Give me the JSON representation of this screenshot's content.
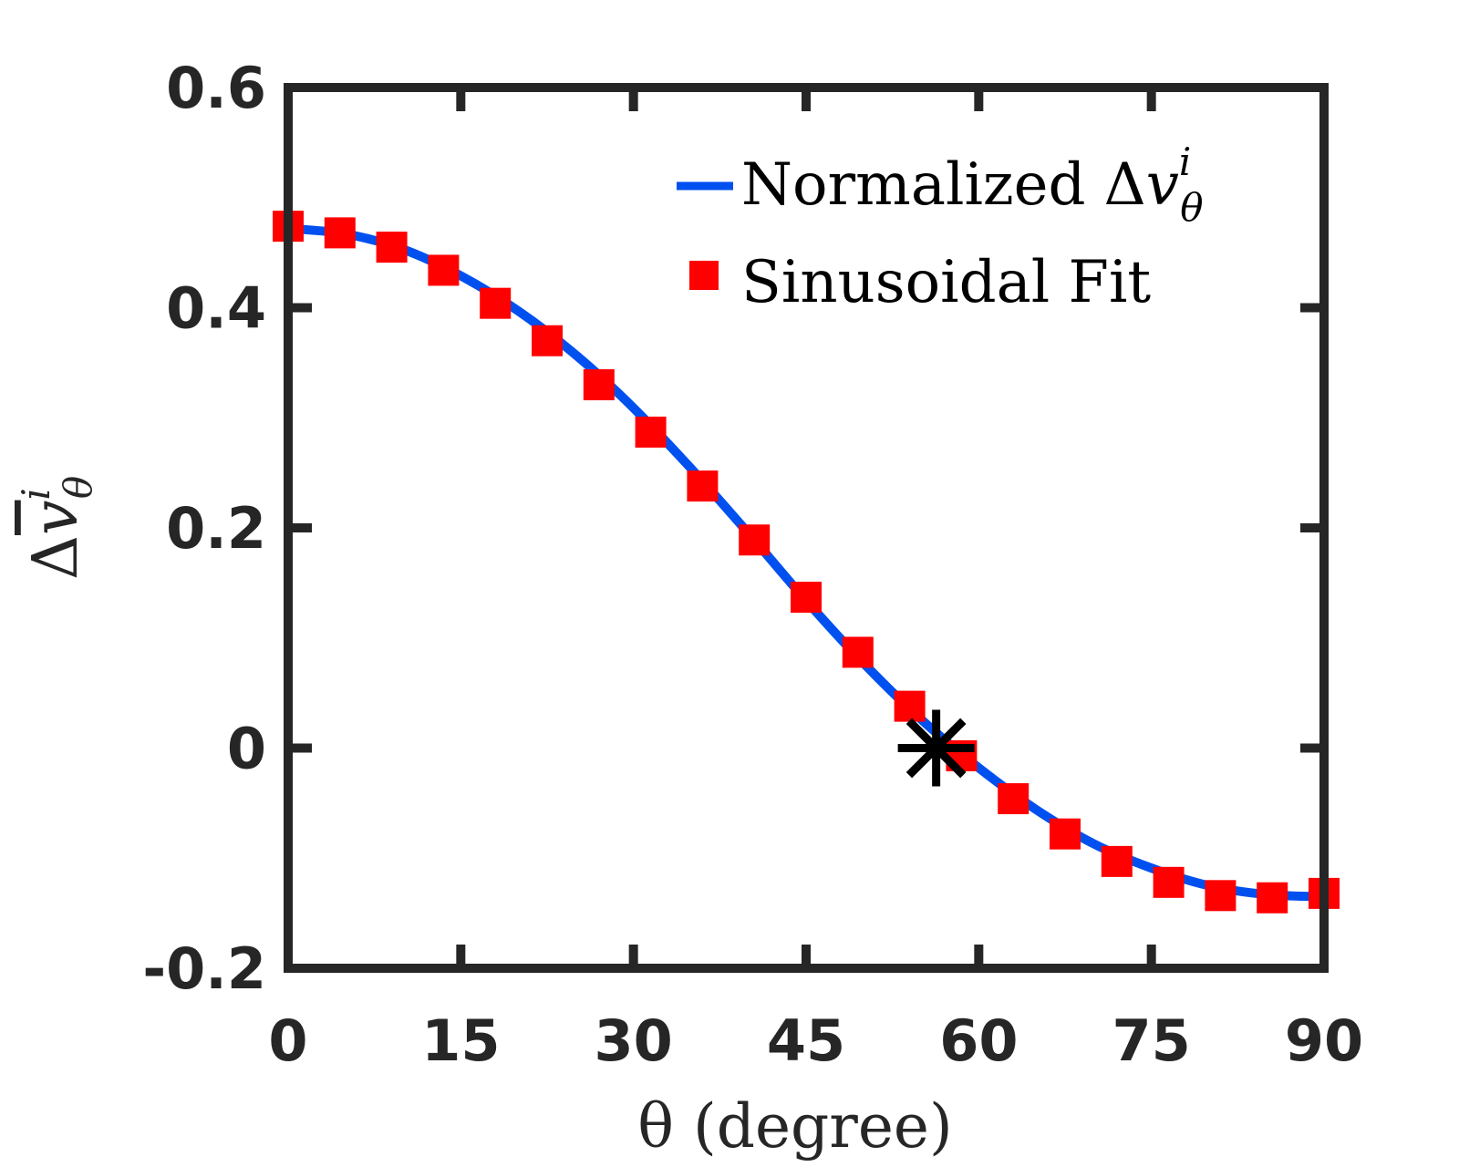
{
  "chart_data": {
    "type": "line",
    "title": "",
    "xlabel": "θ (degree)",
    "ylabel": "Δv̄θi",
    "ylabel_parts": {
      "delta": "Δ",
      "var": "v",
      "sup": "i",
      "sub": "θ"
    },
    "xlim": [
      0,
      90
    ],
    "ylim": [
      -0.2,
      0.6
    ],
    "xticks": [
      0,
      15,
      30,
      45,
      60,
      75,
      90
    ],
    "xtick_labels": [
      "0",
      "15",
      "30",
      "45",
      "60",
      "75",
      "90"
    ],
    "yticks": [
      -0.2,
      0,
      0.2,
      0.4,
      0.6
    ],
    "ytick_labels": [
      "-0.2",
      "0",
      "0.2",
      "0.4",
      "0.6"
    ],
    "grid": false,
    "legend_position": "top-right",
    "series": [
      {
        "name": "Normalized Δvθi",
        "legend_label": "Normalized",
        "legend_math": {
          "delta": "Δ",
          "var": "v",
          "sup": "i",
          "sub": "θ"
        },
        "kind": "line",
        "color": "#0050f0",
        "x": [
          0,
          5,
          10,
          15,
          20,
          25,
          30,
          35,
          40,
          45,
          50,
          55,
          60,
          65,
          70,
          75,
          80,
          85,
          90
        ],
        "values": [
          0.472,
          0.467,
          0.453,
          0.429,
          0.397,
          0.357,
          0.309,
          0.254,
          0.195,
          0.134,
          0.077,
          0.026,
          -0.018,
          -0.056,
          -0.087,
          -0.109,
          -0.125,
          -0.133,
          -0.135
        ]
      },
      {
        "name": "Sinusoidal Fit",
        "legend_label": "Sinusoidal Fit",
        "kind": "scatter",
        "marker": "square",
        "color": "#ff0000",
        "x": [
          0,
          4.5,
          9,
          13.5,
          18,
          22.5,
          27,
          31.5,
          36,
          40.5,
          45,
          49.5,
          54,
          58.5,
          63,
          67.5,
          72,
          76.5,
          81,
          85.5,
          90
        ],
        "values": [
          0.474,
          0.468,
          0.455,
          0.434,
          0.404,
          0.37,
          0.33,
          0.287,
          0.238,
          0.189,
          0.137,
          0.087,
          0.038,
          -0.007,
          -0.046,
          -0.078,
          -0.103,
          -0.122,
          -0.134,
          -0.136,
          -0.132
        ]
      }
    ],
    "annotations": [
      {
        "kind": "asterisk-marker",
        "x": 56.3,
        "y": 0.0,
        "color": "#000000"
      }
    ]
  }
}
